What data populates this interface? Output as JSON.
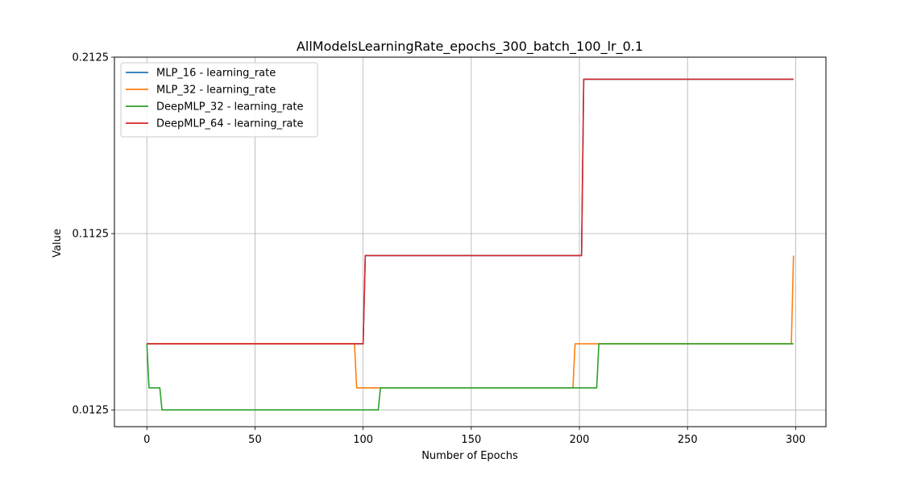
{
  "chart_data": {
    "type": "line",
    "title": "AllModelsLearningRate_epochs_300_batch_100_lr_0.1",
    "xlabel": "Number of Epochs",
    "ylabel": "Value",
    "xlim": [
      -15,
      314
    ],
    "ylim": [
      0.003,
      0.2125
    ],
    "xticks": [
      0,
      50,
      100,
      150,
      200,
      250,
      300
    ],
    "xtick_labels": [
      "0",
      "50",
      "100",
      "150",
      "200",
      "250",
      "300"
    ],
    "yticks": [
      0.0125,
      0.1125,
      0.2125
    ],
    "ytick_labels": [
      "0.0125",
      "0.1125",
      "0.2125"
    ],
    "grid": true,
    "legend_position": "upper-left",
    "series": [
      {
        "name": "MLP_16 - learning_rate",
        "color": "#1f77b4",
        "points": [
          [
            0,
            0.05
          ],
          [
            100,
            0.05
          ],
          [
            101,
            0.1
          ],
          [
            201,
            0.1
          ],
          [
            202,
            0.2
          ],
          [
            299,
            0.2
          ]
        ]
      },
      {
        "name": "MLP_32 - learning_rate",
        "color": "#ff7f0e",
        "points": [
          [
            0,
            0.05
          ],
          [
            96,
            0.05
          ],
          [
            97,
            0.025
          ],
          [
            197,
            0.025
          ],
          [
            198,
            0.05
          ],
          [
            298,
            0.05
          ],
          [
            299,
            0.1
          ]
        ]
      },
      {
        "name": "DeepMLP_32 - learning_rate",
        "color": "#2ca02c",
        "points": [
          [
            0,
            0.05
          ],
          [
            1,
            0.025
          ],
          [
            6,
            0.025
          ],
          [
            7,
            0.0125
          ],
          [
            107,
            0.0125
          ],
          [
            108,
            0.025
          ],
          [
            208,
            0.025
          ],
          [
            209,
            0.05
          ],
          [
            299,
            0.05
          ]
        ]
      },
      {
        "name": "DeepMLP_64 - learning_rate",
        "color": "#d62728",
        "points": [
          [
            0,
            0.05
          ],
          [
            100,
            0.05
          ],
          [
            101,
            0.1
          ],
          [
            201,
            0.1
          ],
          [
            202,
            0.2
          ],
          [
            299,
            0.2
          ]
        ]
      }
    ]
  }
}
